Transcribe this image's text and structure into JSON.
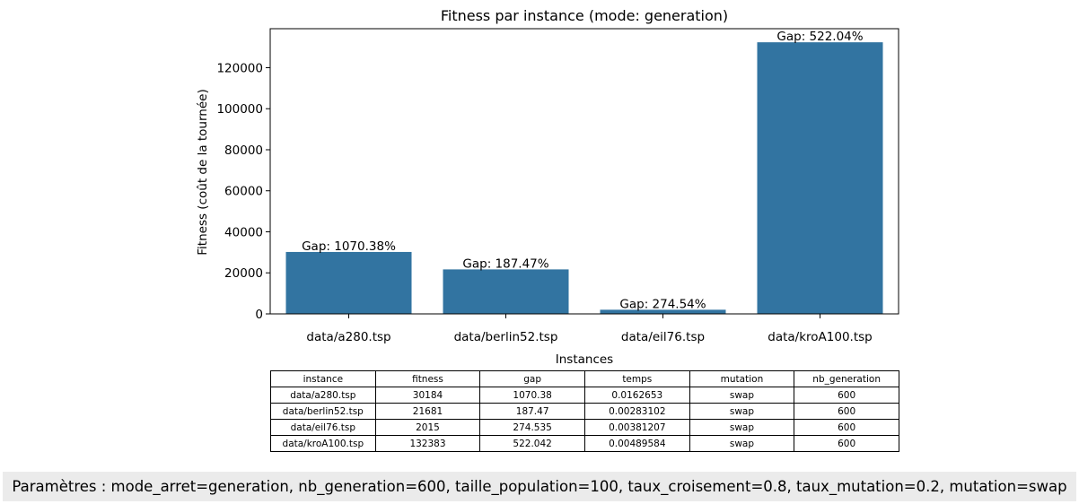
{
  "chart_data": {
    "type": "bar",
    "title": "Fitness par instance (mode: generation)",
    "xlabel": "Instances",
    "ylabel": "Fitness (coût de la tournée)",
    "categories": [
      "data/a280.tsp",
      "data/berlin52.tsp",
      "data/eil76.tsp",
      "data/kroA100.tsp"
    ],
    "values": [
      30184,
      21681,
      2015,
      132383
    ],
    "data_labels": [
      "Gap: 1070.38%",
      "Gap: 187.47%",
      "Gap: 274.54%",
      "Gap: 522.04%"
    ],
    "ylim": [
      0,
      139003
    ],
    "yticks": [
      0,
      20000,
      40000,
      60000,
      80000,
      100000,
      120000
    ],
    "bar_color": "#3274a1",
    "grid": false,
    "legend": "none"
  },
  "table": {
    "headers": [
      "instance",
      "fitness",
      "gap",
      "temps",
      "mutation",
      "nb_generation"
    ],
    "rows": [
      [
        "data/a280.tsp",
        "30184",
        "1070.38",
        "0.0162653",
        "swap",
        "600"
      ],
      [
        "data/berlin52.tsp",
        "21681",
        "187.47",
        "0.00283102",
        "swap",
        "600"
      ],
      [
        "data/eil76.tsp",
        "2015",
        "274.535",
        "0.00381207",
        "swap",
        "600"
      ],
      [
        "data/kroA100.tsp",
        "132383",
        "522.042",
        "0.00489584",
        "swap",
        "600"
      ]
    ]
  },
  "params_text": "Paramètres : mode_arret=generation, nb_generation=600, taille_population=100, taux_croisement=0.8, taux_mutation=0.2, mutation=swap"
}
